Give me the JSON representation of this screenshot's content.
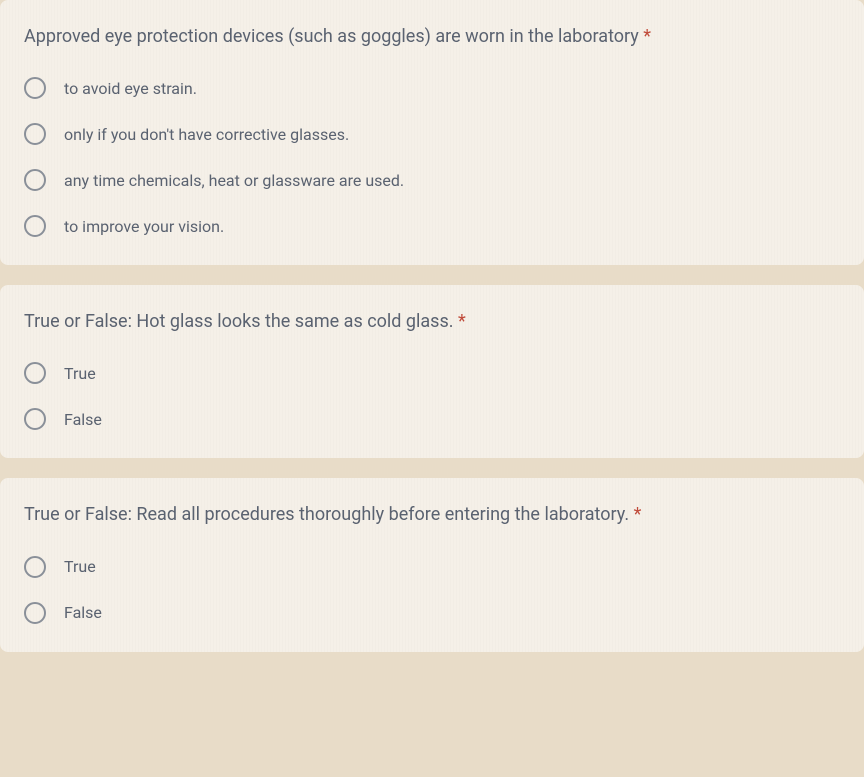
{
  "questions": [
    {
      "text": "Approved eye protection devices (such as goggles) are worn in the laboratory",
      "required": true,
      "options": [
        "to avoid eye strain.",
        "only if you don't have corrective glasses.",
        "any time chemicals, heat or glassware are used.",
        "to improve your vision."
      ]
    },
    {
      "text": "True or False: Hot glass looks the same as cold glass.",
      "required": true,
      "options": [
        "True",
        "False"
      ]
    },
    {
      "text": "True or False: Read all procedures thoroughly before entering the laboratory.",
      "required": true,
      "options": [
        "True",
        "False"
      ]
    }
  ],
  "colors": {
    "page_bg": "#e8dcc8",
    "card_bg": "#f5f0e8",
    "text": "#5a6270",
    "radio_border": "#8a9099",
    "required": "#c04b3a",
    "top_border": "#4a6aa0"
  },
  "typography": {
    "question_fontsize": 18,
    "option_fontsize": 16,
    "font_family": "Roboto, Arial, sans-serif"
  }
}
